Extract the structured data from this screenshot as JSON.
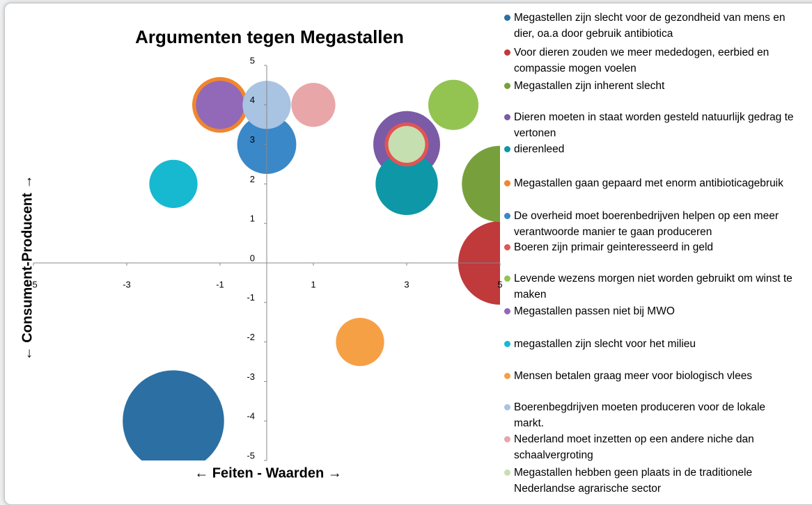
{
  "chart_data": {
    "type": "bubble",
    "title": "Argumenten tegen Megastallen",
    "x_label": "← Feiten - Waarden →",
    "y_label": "← Consument-Producent →",
    "xlim": [
      -5,
      5
    ],
    "ylim": [
      -5,
      5
    ],
    "xticks": [
      -5,
      -3,
      -1,
      1,
      3,
      5
    ],
    "yticks": [
      -5,
      -4,
      -3,
      -2,
      -1,
      0,
      1,
      2,
      3,
      4,
      5
    ],
    "legend": "right",
    "series": [
      {
        "name": "Megastellen zijn slecht voor de gezondheid van mens en dier, oa.a door gebruik antibiotica",
        "color": "#2c6fa3",
        "x": [
          -2
        ],
        "values": [
          -4
        ],
        "sizes": [
          53
        ]
      },
      {
        "name": "Voor dieren zouden we meer mededogen, eerbied en compassie mogen voelen",
        "color": "#c0393b",
        "x": [
          5
        ],
        "values": [
          0
        ],
        "sizes": [
          36
        ]
      },
      {
        "name": "Megastallen zijn inherent slecht",
        "color": "#77a03c",
        "x": [
          5
        ],
        "values": [
          2
        ],
        "sizes": [
          30
        ]
      },
      {
        "name": "Dieren moeten in staat worden gesteld natuurlijk gedrag te vertonen",
        "color": "#7b5aa6",
        "x": [
          3
        ],
        "values": [
          3
        ],
        "sizes": [
          23
        ]
      },
      {
        "name": "dierenleed",
        "color": "#0e97a6",
        "x": [
          3
        ],
        "values": [
          2
        ],
        "sizes": [
          20
        ]
      },
      {
        "name": "Megastallen gaan gepaard met enorm antibioticagebruik",
        "color": "#f0862e",
        "x": [
          -1
        ],
        "values": [
          4
        ],
        "sizes": [
          16
        ]
      },
      {
        "name": "De overheid moet boerenbedrijven helpen op een meer verantwoorde manier te gaan produceren",
        "color": "#3a88c8",
        "x": [
          0
        ],
        "values": [
          3
        ],
        "sizes": [
          18
        ]
      },
      {
        "name": "Boeren zijn primair geinteresseerd in geld",
        "color": "#e05555",
        "x": [
          3
        ],
        "values": [
          3
        ],
        "sizes": [
          10
        ]
      },
      {
        "name": "Levende wezens morgen niet worden gebruikt om winst te maken",
        "color": "#93c452",
        "x": [
          4
        ],
        "values": [
          4
        ],
        "sizes": [
          13
        ]
      },
      {
        "name": "Megastallen passen niet bij MWO",
        "color": "#9268b8",
        "x": [
          -1
        ],
        "values": [
          4
        ],
        "sizes": [
          12
        ]
      },
      {
        "name": "megastallen zijn slecht voor het milieu",
        "color": "#16b9d0",
        "x": [
          -2
        ],
        "values": [
          2
        ],
        "sizes": [
          12
        ]
      },
      {
        "name": "Mensen betalen graag meer voor biologisch vlees",
        "color": "#f6a045",
        "x": [
          2
        ],
        "values": [
          -2
        ],
        "sizes": [
          12
        ]
      },
      {
        "name": "Boerenbegdrijven moeten produceren voor de lokale markt.",
        "color": "#a9c3e2",
        "x": [
          0
        ],
        "values": [
          4
        ],
        "sizes": [
          12
        ]
      },
      {
        "name": "Nederland moet inzetten op een andere niche dan schaalvergroting",
        "color": "#e9a6a8",
        "x": [
          1
        ],
        "values": [
          4
        ],
        "sizes": [
          10
        ]
      },
      {
        "name": "Megastallen hebben geen plaats in de traditionele Nederlandse agrarische sector",
        "color": "#c6dfb0",
        "x": [
          3
        ],
        "values": [
          3
        ],
        "sizes": [
          7
        ]
      }
    ]
  }
}
